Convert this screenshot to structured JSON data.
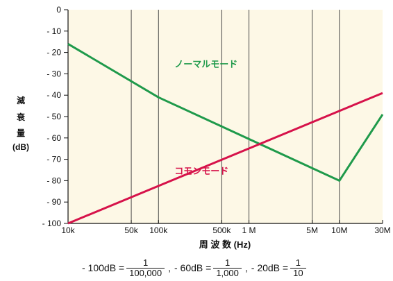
{
  "chart_data": {
    "type": "line",
    "title": "",
    "ylabel_chars": [
      "減",
      "衰",
      "量"
    ],
    "ylabel_unit": "(dB)",
    "xlabel": "周 波 数 (Hz)",
    "x_scale": "log",
    "xlim": [
      10000,
      30000000
    ],
    "ylim": [
      -100,
      0
    ],
    "x_ticks": [
      {
        "value": 10000,
        "label": "10k"
      },
      {
        "value": 50000,
        "label": "50k"
      },
      {
        "value": 100000,
        "label": "100k"
      },
      {
        "value": 500000,
        "label": "500k"
      },
      {
        "value": 1000000,
        "label": "1 M"
      },
      {
        "value": 5000000,
        "label": "5M"
      },
      {
        "value": 10000000,
        "label": "10M"
      },
      {
        "value": 30000000,
        "label": "30M"
      }
    ],
    "y_ticks": [
      {
        "value": 0,
        "label": "0"
      },
      {
        "value": -10,
        "label": "- 10"
      },
      {
        "value": -20,
        "label": "- 20"
      },
      {
        "value": -30,
        "label": "- 30"
      },
      {
        "value": -40,
        "label": "- 40"
      },
      {
        "value": -50,
        "label": "- 50"
      },
      {
        "value": -60,
        "label": "- 60"
      },
      {
        "value": -70,
        "label": "- 70"
      },
      {
        "value": -80,
        "label": "- 80"
      },
      {
        "value": -90,
        "label": "- 90"
      },
      {
        "value": -100,
        "label": "- 100"
      }
    ],
    "grid": "vertical",
    "series": [
      {
        "name": "ノーマルモード",
        "color": "#1f9a4b",
        "points": [
          {
            "x": 10000,
            "y": -16
          },
          {
            "x": 100000,
            "y": -41
          },
          {
            "x": 10000000,
            "y": -80
          },
          {
            "x": 30000000,
            "y": -49
          }
        ],
        "label_anchor": {
          "x": 150000,
          "y": -27
        }
      },
      {
        "name": "コモンモード",
        "color": "#d6124a",
        "points": [
          {
            "x": 10000,
            "y": -100
          },
          {
            "x": 30000000,
            "y": -39
          }
        ],
        "label_anchor": {
          "x": 150000,
          "y": -77
        }
      }
    ],
    "colors": {
      "plot_background": "#fdf8e6",
      "axis": "#111111"
    }
  },
  "equation": {
    "items": [
      {
        "lhs": "- 100dB =",
        "num": "1",
        "den": "100,000"
      },
      {
        "lhs": "- 60dB =",
        "num": "1",
        "den": "1,000"
      },
      {
        "lhs": "- 20dB =",
        "num": "1",
        "den": "10"
      }
    ],
    "separator": ","
  }
}
